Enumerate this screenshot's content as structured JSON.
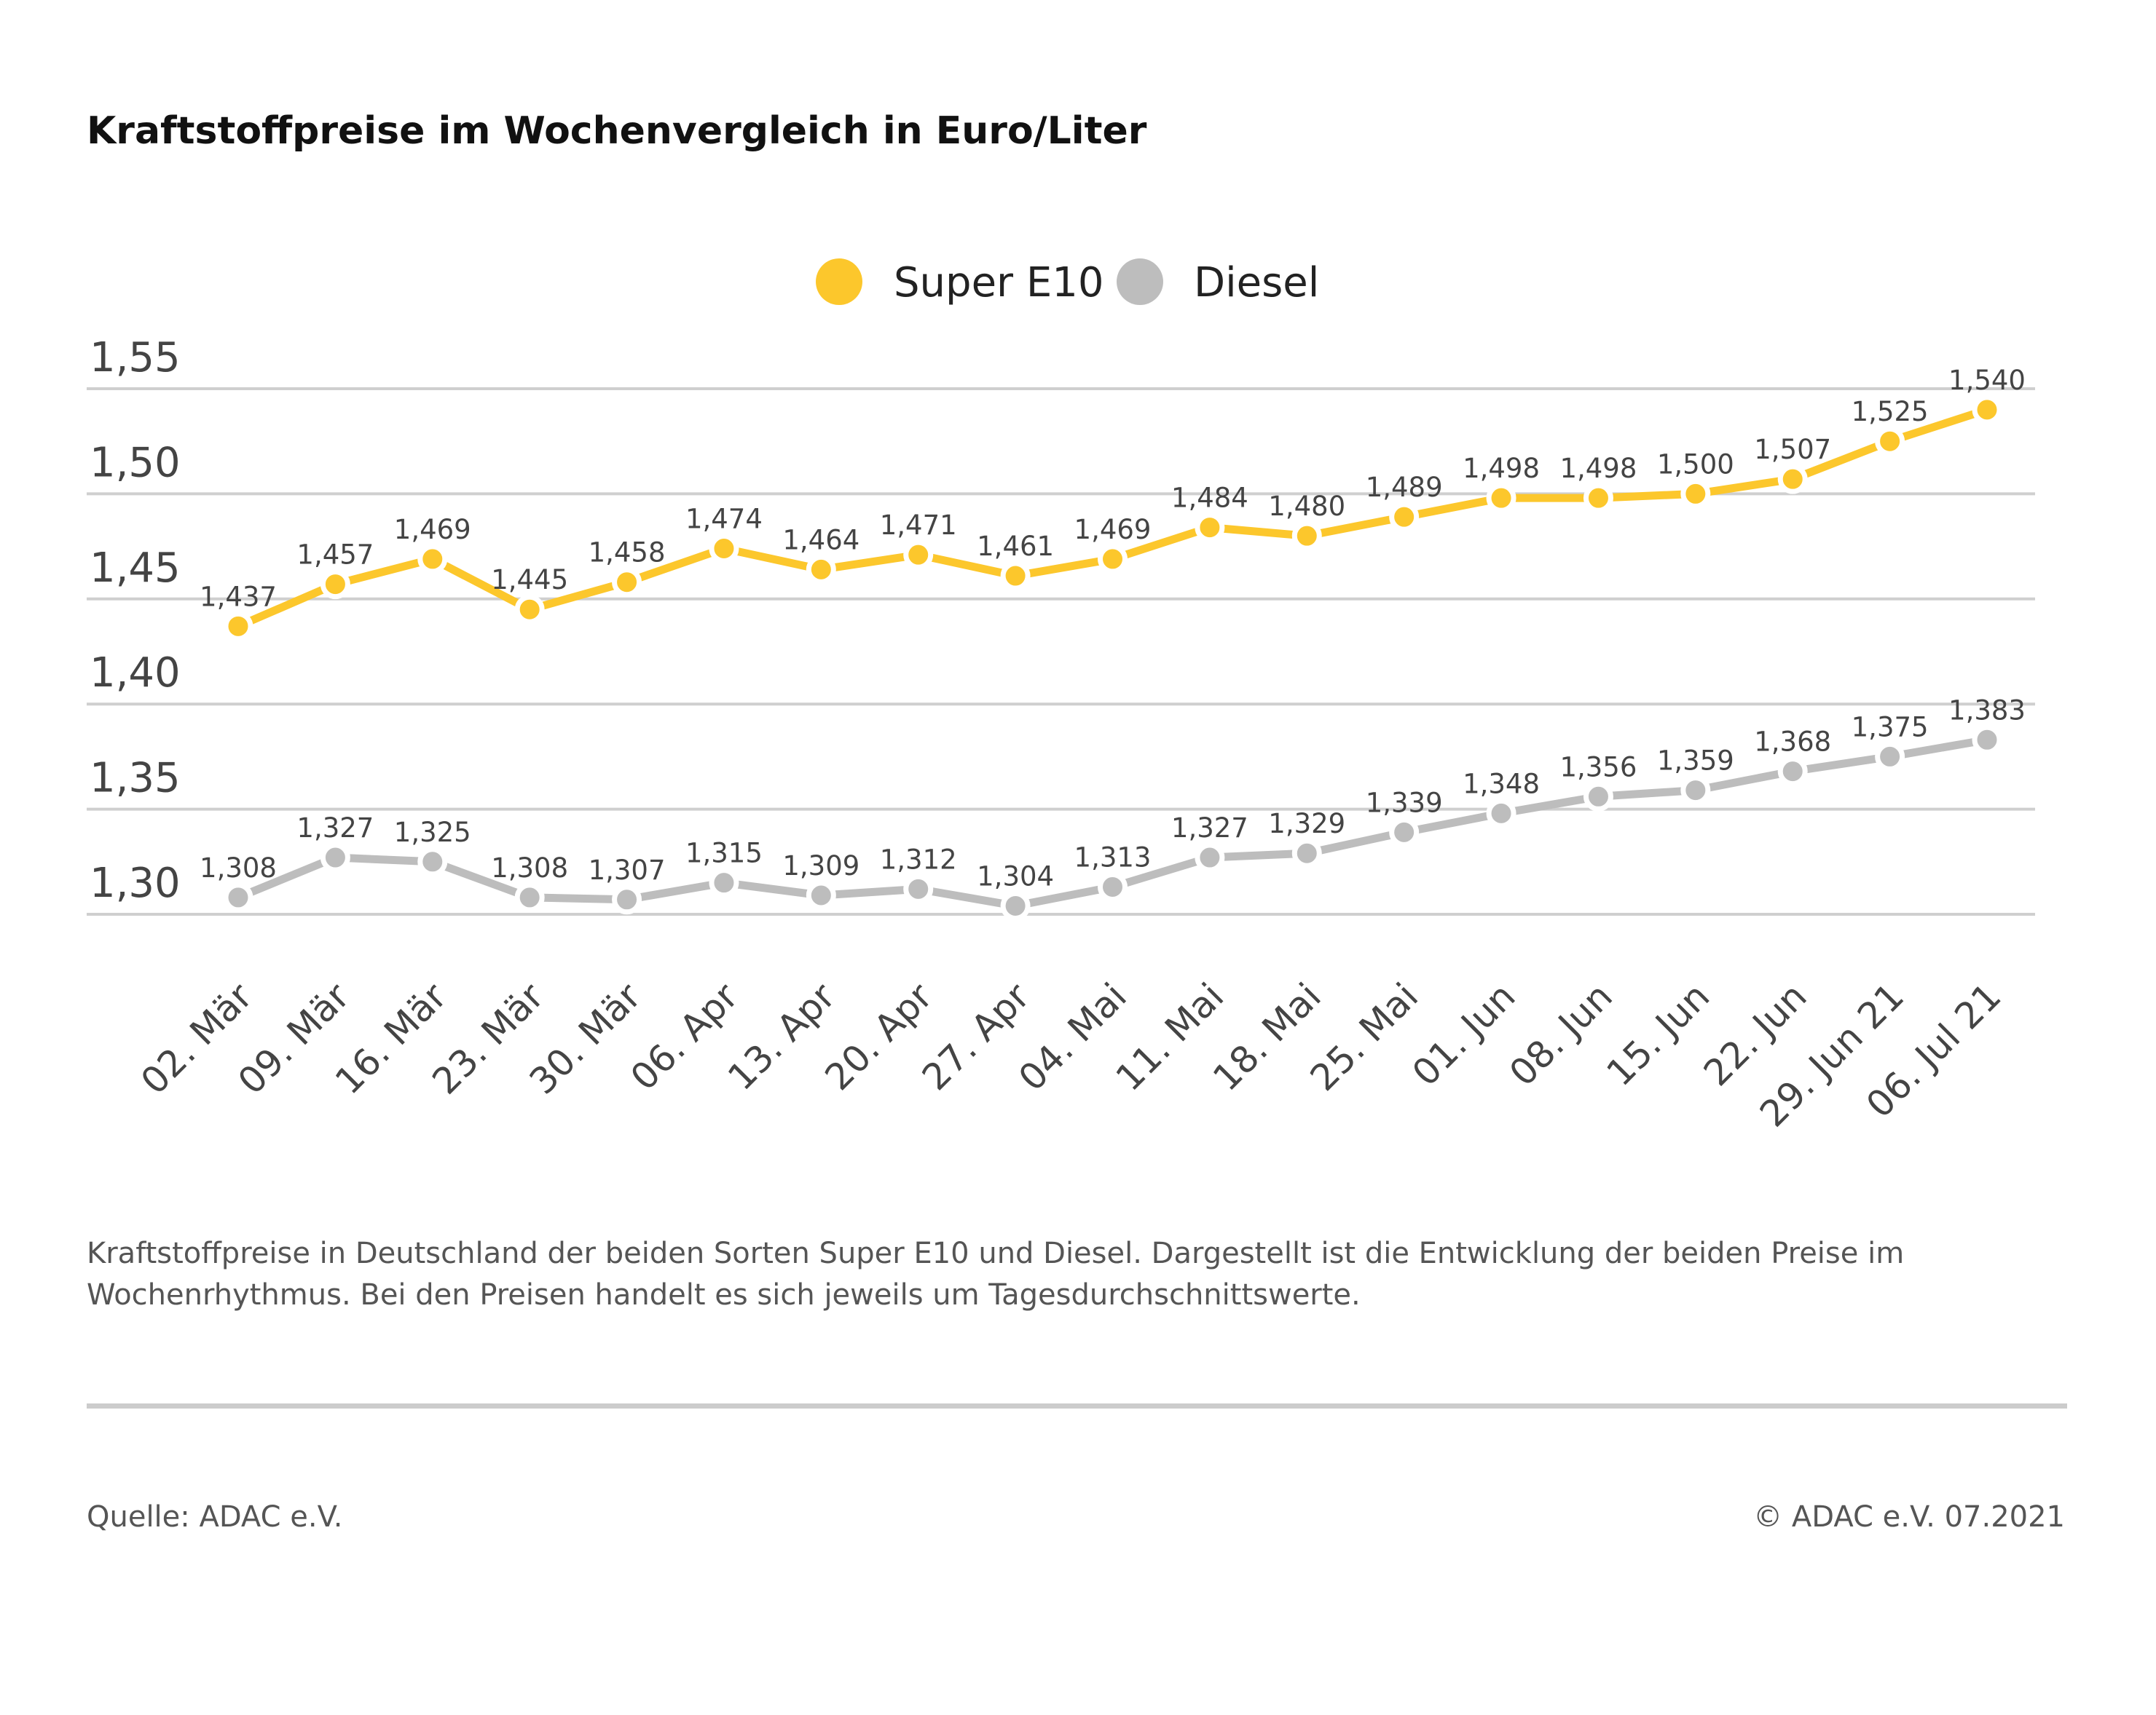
{
  "chart_data": {
    "type": "line",
    "title": "Kraftstoffpreise im Wochenvergleich in Euro/Liter",
    "categories": [
      "02. Mär",
      "09. Mär",
      "16. Mär",
      "23. Mär",
      "30. Mär",
      "06. Apr",
      "13. Apr",
      "20. Apr",
      "27. Apr",
      "04. Mai",
      "11. Mai",
      "18. Mai",
      "25. Mai",
      "01. Jun",
      "08. Jun",
      "15. Jun",
      "22. Jun",
      "29. Jun 21",
      "06. Jul 21"
    ],
    "series": [
      {
        "name": "Super E10",
        "color": "#fcc72c",
        "values": [
          1.437,
          1.457,
          1.469,
          1.445,
          1.458,
          1.474,
          1.464,
          1.471,
          1.461,
          1.469,
          1.484,
          1.48,
          1.489,
          1.498,
          1.498,
          1.5,
          1.507,
          1.525,
          1.54
        ],
        "labels": [
          "1,437",
          "1,457",
          "1,469",
          "1,445",
          "1,458",
          "1,474",
          "1,464",
          "1,471",
          "1,461",
          "1,469",
          "1,484",
          "1,480",
          "1,489",
          "1,498",
          "1,498",
          "1,500",
          "1,507",
          "1,525",
          "1,540"
        ]
      },
      {
        "name": "Diesel",
        "color": "#bdbdbd",
        "values": [
          1.308,
          1.327,
          1.325,
          1.308,
          1.307,
          1.315,
          1.309,
          1.312,
          1.304,
          1.313,
          1.327,
          1.329,
          1.339,
          1.348,
          1.356,
          1.359,
          1.368,
          1.375,
          1.383
        ],
        "labels": [
          "1,308",
          "1,327",
          "1,325",
          "1,308",
          "1,307",
          "1,315",
          "1,309",
          "1,312",
          "1,304",
          "1,313",
          "1,327",
          "1,329",
          "1,339",
          "1,348",
          "1,356",
          "1,359",
          "1,368",
          "1,375",
          "1,383"
        ]
      }
    ],
    "yticks": [
      1.3,
      1.35,
      1.4,
      1.45,
      1.5,
      1.55
    ],
    "ytick_labels": [
      "1,30",
      "1,35",
      "1,40",
      "1,45",
      "1,50",
      "1,55"
    ],
    "ylim": [
      1.3,
      1.55
    ],
    "grid": true,
    "legend_placement": "top-center"
  },
  "description": [
    "Kraftstoffpreise in Deutschland der beiden Sorten Super E10 und Diesel. Dargestellt ist die Entwicklung der beiden Preise im",
    "Wochenrhythmus. Bei den Preisen handelt es sich jeweils um Tagesdurchschnittswerte."
  ],
  "footer": {
    "source": "Quelle: ADAC e.V.",
    "copyright": "© ADAC e.V. 07.2021"
  }
}
